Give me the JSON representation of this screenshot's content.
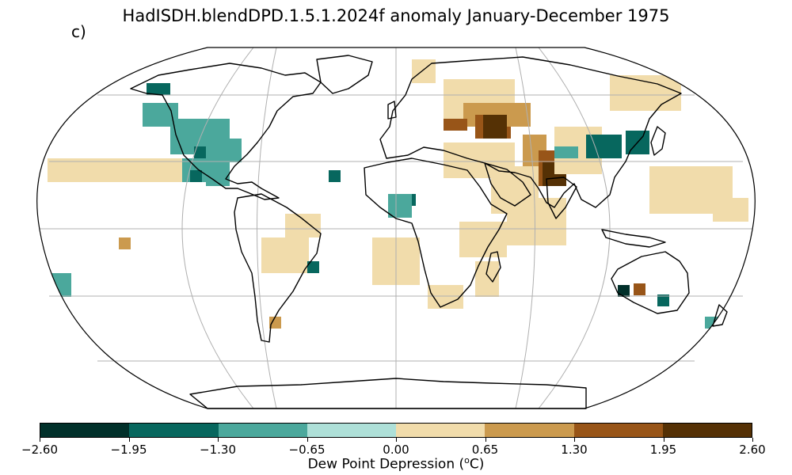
{
  "title": "HadISDH.blendDPD.1.5.1.2024f anomaly January-December 1975",
  "panel_label": "c)",
  "colorbar": {
    "label_prefix": "Dew Point Depression (",
    "label_sup": "o",
    "label_suffix": "C)",
    "ticks": [
      "−2.60",
      "−1.95",
      "−1.30",
      "−0.65",
      "0.00",
      "0.65",
      "1.30",
      "1.95",
      "2.60"
    ],
    "colors": [
      "#01302a",
      "#07675e",
      "#4ba89c",
      "#aee0d8",
      "#f1dcab",
      "#cb9a4e",
      "#985518",
      "#553105"
    ]
  },
  "map": {
    "projection": "Robinson",
    "gridlines": true,
    "colors": {
      "ocean": "#ffffff",
      "coastline": "#000000",
      "gridline": "#b0b0b0",
      "border": "#000000"
    }
  }
}
